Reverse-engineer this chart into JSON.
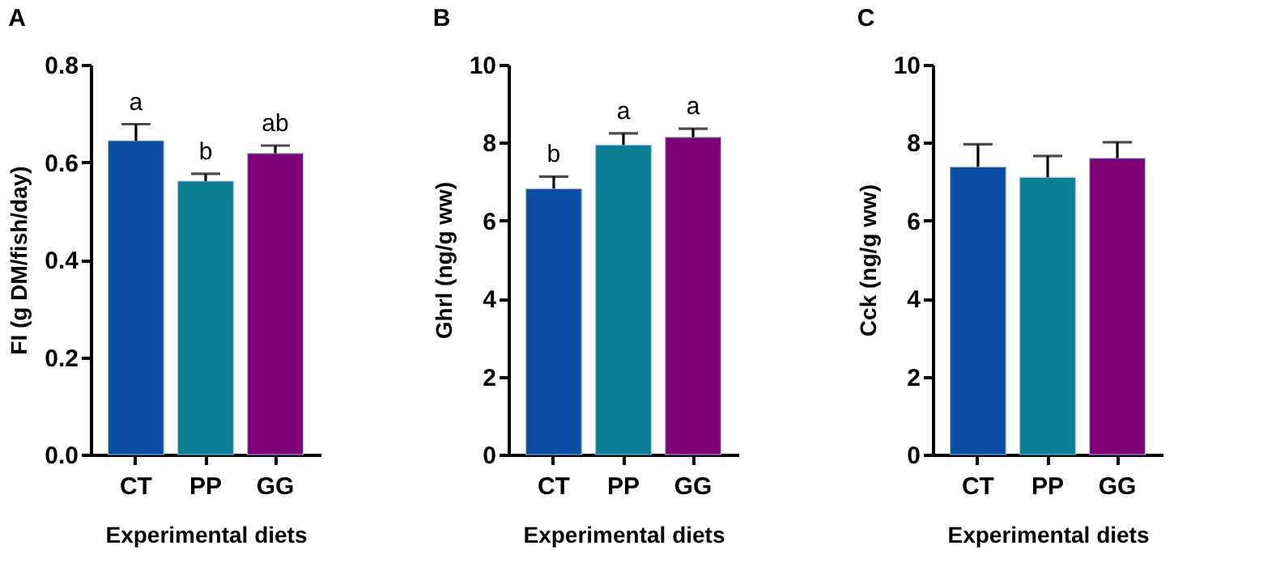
{
  "chart_data": [
    {
      "type": "bar",
      "title": "A",
      "xlabel": "Experimental diets",
      "ylabel": "FI (g DM/fish/day)",
      "categories": [
        "CT",
        "PP",
        "GG"
      ],
      "values": [
        0.644,
        0.561,
        0.618
      ],
      "errors": [
        0.034,
        0.015,
        0.016
      ],
      "colors": [
        "#0a4ea3",
        "#0a7f94",
        "#7d0077"
      ],
      "ylim": [
        0,
        0.8
      ],
      "yticks": [
        {
          "value": 0,
          "label": "0.0"
        },
        0.2,
        0.4,
        0.6,
        0.8
      ],
      "annotations": [
        {
          "text": "a",
          "x": "CT",
          "y": 0.678
        },
        {
          "text": "b",
          "x": "PP",
          "y": 0.576
        },
        {
          "text": "ab",
          "x": "GG",
          "y": 0.634
        }
      ]
    },
    {
      "type": "bar",
      "title": "B",
      "xlabel": "Experimental diets",
      "ylabel": "Ghrl (ng/g ww)",
      "categories": [
        "CT",
        "PP",
        "GG"
      ],
      "values": [
        6.82,
        7.94,
        8.14
      ],
      "errors": [
        0.31,
        0.3,
        0.22
      ],
      "colors": [
        "#0a4ea3",
        "#0a7f94",
        "#7d0077"
      ],
      "ylim": [
        0,
        10
      ],
      "yticks": [
        0,
        2,
        4,
        6,
        8,
        10
      ],
      "annotations": [
        {
          "text": "b",
          "x": "CT",
          "y": 7.13
        },
        {
          "text": "a",
          "x": "PP",
          "y": 8.24
        },
        {
          "text": "a",
          "x": "GG",
          "y": 8.36
        }
      ]
    },
    {
      "type": "bar",
      "title": "C",
      "xlabel": "Experimental diets",
      "ylabel": "Cck (ng/g ww)",
      "categories": [
        "CT",
        "PP",
        "GG"
      ],
      "values": [
        7.38,
        7.11,
        7.6
      ],
      "errors": [
        0.58,
        0.55,
        0.41
      ],
      "colors": [
        "#0a4ea3",
        "#0a7f94",
        "#7d0077"
      ],
      "ylim": [
        0,
        10
      ],
      "yticks": [
        0,
        2,
        4,
        6,
        8,
        10
      ]
    }
  ]
}
